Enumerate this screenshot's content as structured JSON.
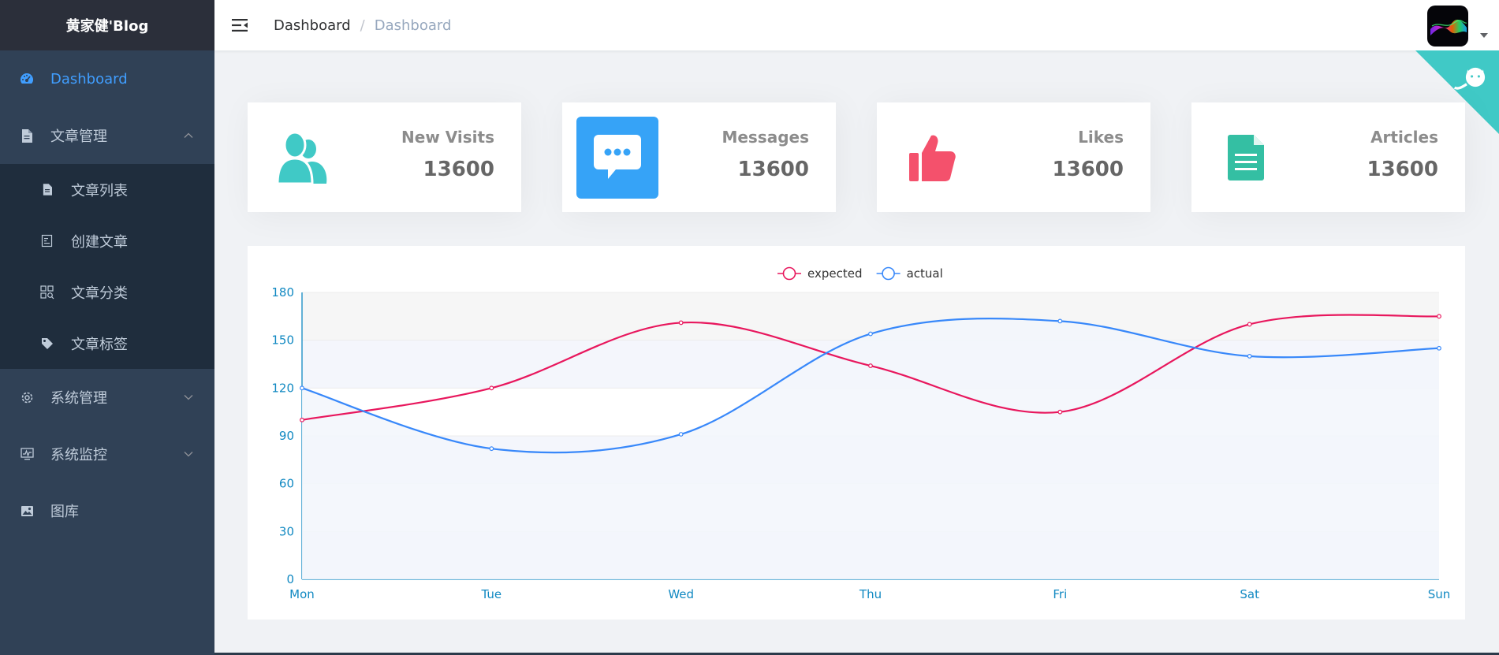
{
  "brand": {
    "title": "黄家健'Blog"
  },
  "sidebar": {
    "dashboard": "Dashboard",
    "article_mgmt": "文章管理",
    "article_sub": [
      "文章列表",
      "创建文章",
      "文章分类",
      "文章标签"
    ],
    "system_mgmt": "系统管理",
    "system_monitor": "系统监控",
    "gallery": "图库"
  },
  "navbar": {
    "breadcrumb_home": "Dashboard",
    "breadcrumb_sep": "/",
    "breadcrumb_current": "Dashboard"
  },
  "panels": [
    {
      "label": "New Visits",
      "value": "13600",
      "color": "#40c9c6",
      "icon": "peoples-icon"
    },
    {
      "label": "Messages",
      "value": "13600",
      "color": "#36a3f7",
      "icon": "message-icon"
    },
    {
      "label": "Likes",
      "value": "13600",
      "color": "#f4516c",
      "icon": "thumbs-up-icon"
    },
    {
      "label": "Articles",
      "value": "13600",
      "color": "#34bfa3",
      "icon": "document-icon"
    }
  ],
  "chart_data": {
    "type": "line",
    "categories": [
      "Mon",
      "Tue",
      "Wed",
      "Thu",
      "Fri",
      "Sat",
      "Sun"
    ],
    "series": [
      {
        "name": "expected",
        "color": "#e8175d",
        "values": [
          100,
          120,
          161,
          134,
          105,
          160,
          165
        ]
      },
      {
        "name": "actual",
        "color": "#3888fa",
        "values": [
          120,
          82,
          91,
          154,
          162,
          140,
          145
        ]
      }
    ],
    "yticks": [
      0,
      30,
      60,
      90,
      120,
      150,
      180
    ],
    "ylim": [
      0,
      180
    ],
    "legend": "top-center",
    "smooth": true,
    "axis_color": "#1189c2"
  }
}
